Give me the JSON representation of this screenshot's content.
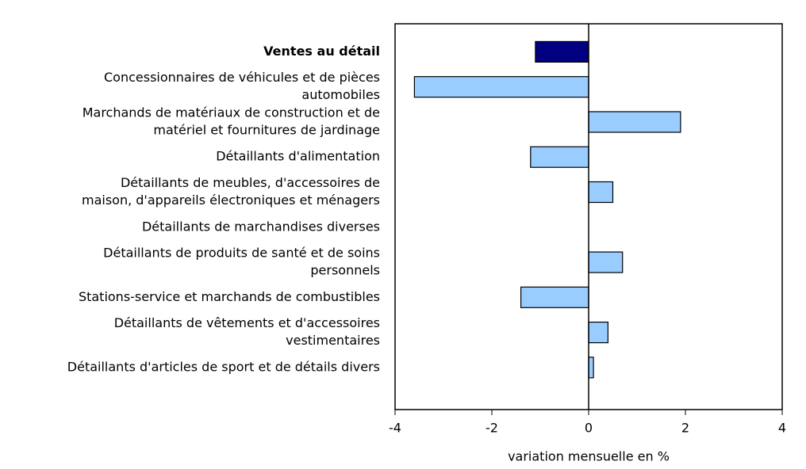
{
  "chart_data": {
    "type": "hbar",
    "categories": [
      [
        "Ventes au détail"
      ],
      [
        "Concessionnaires de véhicules et de pièces",
        "automobiles"
      ],
      [
        "Marchands de matériaux de construction et de",
        "matériel et fournitures de jardinage"
      ],
      [
        "Détaillants d'alimentation"
      ],
      [
        "Détaillants de meubles, d'accessoires de",
        "maison, d'appareils électroniques et ménagers"
      ],
      [
        "Détaillants de marchandises diverses"
      ],
      [
        "Détaillants de produits de santé et de soins",
        "personnels"
      ],
      [
        "Stations-service et marchands de combustibles"
      ],
      [
        "Détaillants de vêtements et d'accessoires",
        "vestimentaires"
      ],
      [
        "Détaillants d'articles de sport et de détails divers"
      ]
    ],
    "values": [
      -1.1,
      -3.6,
      1.9,
      -1.2,
      0.5,
      0.0,
      0.7,
      -1.4,
      0.4,
      0.1
    ],
    "colors": [
      "#000080",
      "#99ccff",
      "#99ccff",
      "#99ccff",
      "#99ccff",
      "#99ccff",
      "#99ccff",
      "#99ccff",
      "#99ccff",
      "#99ccff"
    ],
    "xlim": [
      -4,
      4
    ],
    "xticks": [
      -4,
      -2,
      0,
      2,
      4
    ],
    "xlabel": "variation mensuelle en %"
  }
}
